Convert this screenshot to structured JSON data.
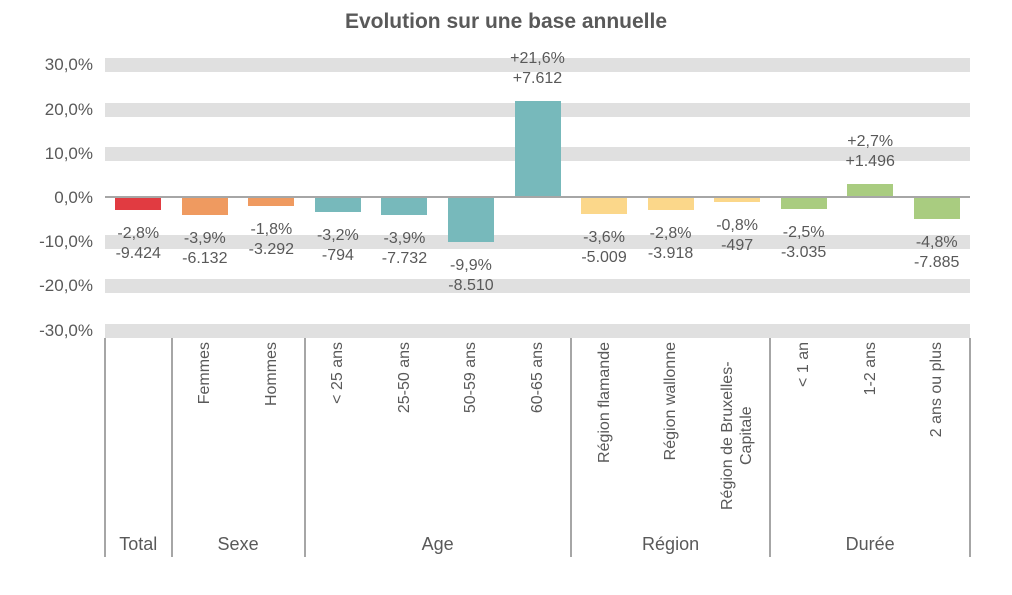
{
  "chart_data": {
    "type": "bar",
    "title": "Evolution sur une base annuelle",
    "unit": "percent",
    "ylim": [
      -33,
      33
    ],
    "grid": "horizontal-bands",
    "legend": "none",
    "y_axis": {
      "ticks": [
        {
          "label": "30,0%",
          "value": 30
        },
        {
          "label": "20,0%",
          "value": 20
        },
        {
          "label": "10,0%",
          "value": 10
        },
        {
          "label": "0,0%",
          "value": 0
        },
        {
          "label": "-10,0%",
          "value": -10
        },
        {
          "label": "-20,0%",
          "value": -20
        },
        {
          "label": "-30,0%",
          "value": -30
        }
      ]
    },
    "groups": [
      {
        "name": "Total",
        "color": "#e13b41",
        "bars": [
          {
            "category": "",
            "value": -2.8,
            "pct_label": "-2,8%",
            "abs_label": "-9.424"
          }
        ]
      },
      {
        "name": "Sexe",
        "color": "#ef9a60",
        "bars": [
          {
            "category": "Femmes",
            "value": -3.9,
            "pct_label": "-3,9%",
            "abs_label": "-6.132"
          },
          {
            "category": "Hommes",
            "value": -1.8,
            "pct_label": "-1,8%",
            "abs_label": "-3.292"
          }
        ]
      },
      {
        "name": "Age",
        "color": "#77b9bb",
        "bars": [
          {
            "category": "< 25 ans",
            "value": -3.2,
            "pct_label": "-3,2%",
            "abs_label": "-794"
          },
          {
            "category": "25-50 ans",
            "value": -3.9,
            "pct_label": "-3,9%",
            "abs_label": "-7.732"
          },
          {
            "category": "50-59 ans",
            "value": -9.9,
            "pct_label": "-9,9%",
            "abs_label": "-8.510"
          },
          {
            "category": "60-65 ans",
            "value": 21.6,
            "pct_label": "+21,6%",
            "abs_label": "+7.612"
          }
        ]
      },
      {
        "name": "Région",
        "color": "#fbd78a",
        "bars": [
          {
            "category": "Région flamande",
            "value": -3.6,
            "pct_label": "-3,6%",
            "abs_label": "-5.009"
          },
          {
            "category": "Région wallonne",
            "value": -2.8,
            "pct_label": "-2,8%",
            "abs_label": "-3.918"
          },
          {
            "category": "Région de Bruxelles-Capitale",
            "value": -0.8,
            "pct_label": "-0,8%",
            "abs_label": "-497"
          }
        ]
      },
      {
        "name": "Durée",
        "color": "#a9cc80",
        "bars": [
          {
            "category": "< 1 an",
            "value": -2.5,
            "pct_label": "-2,5%",
            "abs_label": "-3.035"
          },
          {
            "category": "1-2 ans",
            "value": 2.7,
            "pct_label": "+2,7%",
            "abs_label": "+1.496"
          },
          {
            "category": "2 ans ou plus",
            "value": -4.8,
            "pct_label": "-4,8%",
            "abs_label": "-7.885"
          }
        ]
      }
    ]
  }
}
